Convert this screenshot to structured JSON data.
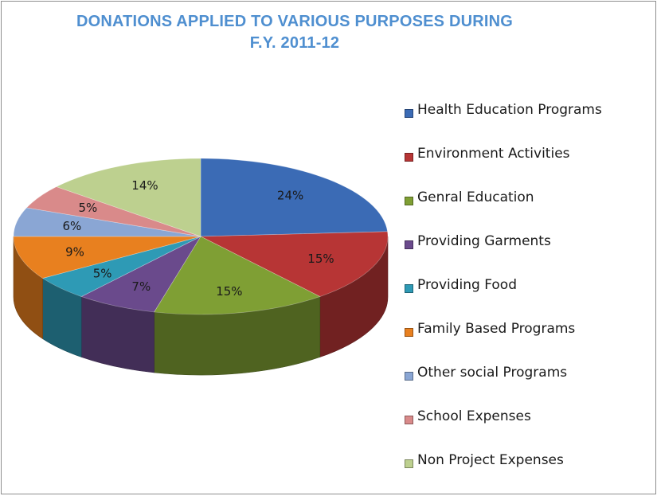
{
  "chart_data": {
    "type": "pie",
    "title": "DONATIONS APPLIED TO VARIOUS PURPOSES DURING",
    "subtitle": "F.Y. 2011-12",
    "slices": [
      {
        "name": "Health Education Programs",
        "value": 24,
        "label": "24%",
        "color": "#3b6bb5"
      },
      {
        "name": "Environment Activities",
        "value": 15,
        "label": "15%",
        "color": "#b73535"
      },
      {
        "name": "Genral Education",
        "value": 15,
        "label": "15%",
        "color": "#7f9f34"
      },
      {
        "name": "Providing Garments",
        "value": 7,
        "label": "7%",
        "color": "#6a4a8c"
      },
      {
        "name": "Providing Food",
        "value": 5,
        "label": "5%",
        "color": "#2e9ab5"
      },
      {
        "name": "Family Based Programs",
        "value": 9,
        "label": "9%",
        "color": "#e8801f"
      },
      {
        "name": "Other social Programs",
        "value": 6,
        "label": "6%",
        "color": "#8aa6d4"
      },
      {
        "name": "School Expenses",
        "value": 5,
        "label": "5%",
        "color": "#d98a8a"
      },
      {
        "name": "Non Project Expenses",
        "value": 14,
        "label": "14%",
        "color": "#bdd08f"
      }
    ],
    "legend_position": "right"
  }
}
